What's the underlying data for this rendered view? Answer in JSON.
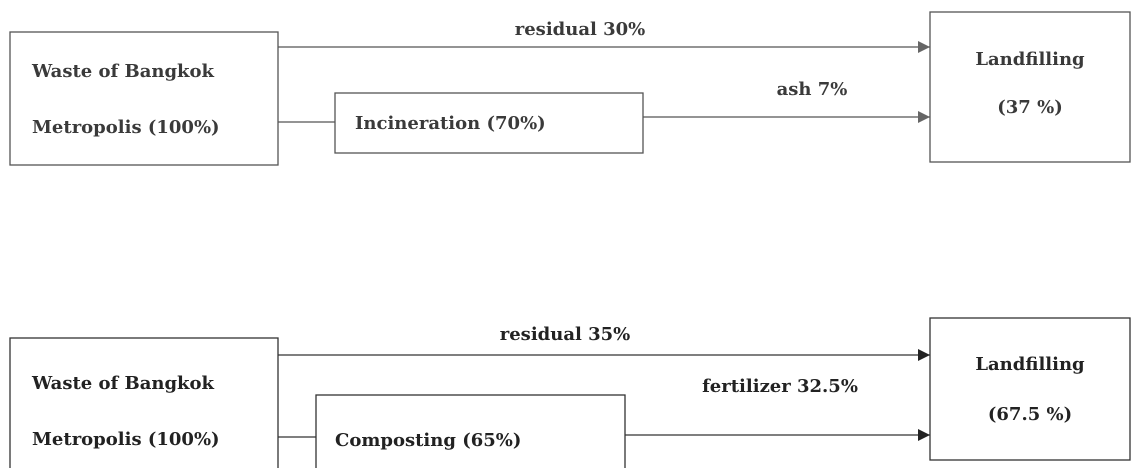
{
  "diagrams": [
    {
      "source": {
        "lines": [
          "Waste of Bangkok",
          "Metropolis (100%)"
        ]
      },
      "process": {
        "label": "Incineration (70%)"
      },
      "target": {
        "lines": [
          "Landfilling",
          "(37 %)"
        ]
      },
      "edges": [
        {
          "label": "residual 30%"
        },
        {
          "label": "ash 7%"
        }
      ]
    },
    {
      "source": {
        "lines": [
          "Waste of Bangkok",
          "Metropolis (100%)"
        ]
      },
      "process": {
        "label": "Composting (65%)"
      },
      "target": {
        "lines": [
          "Landfilling",
          "(67.5 %)"
        ]
      },
      "edges": [
        {
          "label": "residual 35%"
        },
        {
          "label": "fertilizer 32.5%"
        }
      ]
    }
  ]
}
